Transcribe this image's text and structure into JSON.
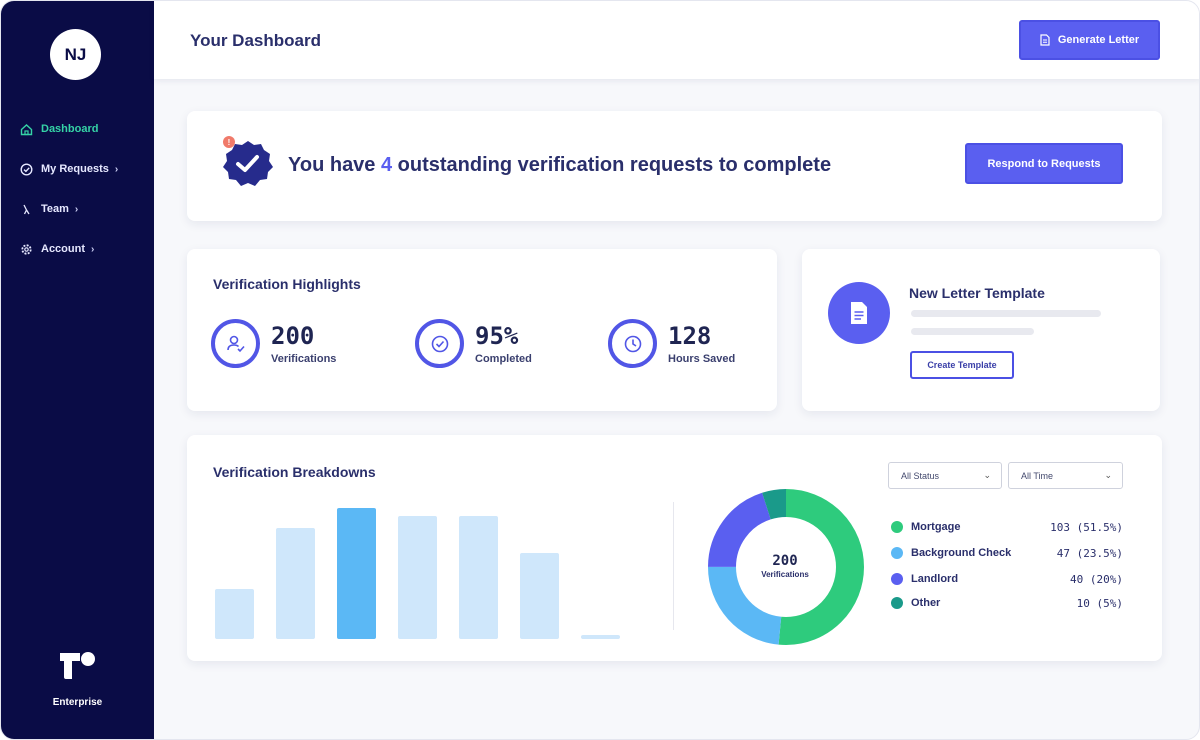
{
  "user": {
    "initials": "NJ"
  },
  "sidebar": {
    "items": [
      {
        "label": "Dashboard",
        "icon": "home-icon",
        "active": true
      },
      {
        "label": "My Requests",
        "icon": "check-circle-icon",
        "chevron": "›"
      },
      {
        "label": "Team",
        "icon": "team-icon",
        "chevron": "›"
      },
      {
        "label": "Account",
        "icon": "gear-icon",
        "chevron": "›"
      }
    ],
    "brand_label": "Enterprise"
  },
  "header": {
    "title": "Your Dashboard",
    "generate_label": "Generate Letter"
  },
  "alert": {
    "prefix": "You have ",
    "count": "4",
    "suffix": " outstanding verification requests to complete",
    "badge_count": "!",
    "button_label": "Respond to Requests"
  },
  "highlights": {
    "title": "Verification Highlights",
    "stats": [
      {
        "value": "200",
        "label": "Verifications",
        "icon": "user-check-icon"
      },
      {
        "value": "95%",
        "label": "Completed",
        "icon": "check-circle-icon"
      },
      {
        "value": "128",
        "label": "Hours Saved",
        "icon": "clock-icon"
      }
    ]
  },
  "template": {
    "title": "New Letter Template",
    "button_label": "Create Template",
    "icon": "document-icon"
  },
  "breakdown": {
    "title": "Verification Breakdowns",
    "filters": {
      "status": "All Status",
      "time": "All Time"
    },
    "center_value": "200",
    "center_label": "Verifications",
    "legend": [
      {
        "name": "Mortgage",
        "count": "103 (51.5%)",
        "color": "#2ecb7d"
      },
      {
        "name": "Background Check",
        "count": "47 (23.5%)",
        "color": "#5bb8f5"
      },
      {
        "name": "Landlord",
        "count": "40 (20%)",
        "color": "#5a5ff0"
      },
      {
        "name": "Other",
        "count": "10 (5%)",
        "color": "#1a9a8a"
      }
    ]
  },
  "chart_data": [
    {
      "type": "bar",
      "categories": [
        "",
        "",
        "",
        "",
        "",
        "",
        ""
      ],
      "values": [
        0.38,
        0.85,
        1.0,
        0.94,
        0.94,
        0.66,
        0.03
      ],
      "highlight_index": 2,
      "colors": {
        "bar": "#cfe7fb",
        "highlight": "#5bb8f5"
      },
      "title": "",
      "xlabel": "",
      "ylabel": ""
    },
    {
      "type": "pie",
      "labels": [
        "Mortgage",
        "Background Check",
        "Landlord",
        "Other"
      ],
      "values": [
        103,
        47,
        40,
        10
      ],
      "colors": [
        "#2ecb7d",
        "#5bb8f5",
        "#5a5ff0",
        "#1a9a8a"
      ]
    }
  ]
}
